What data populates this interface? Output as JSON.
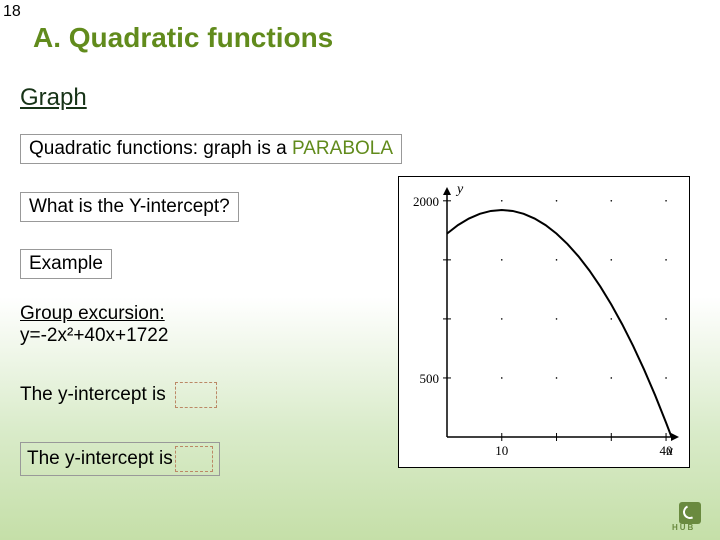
{
  "page_number": "18",
  "title": "A. Quadratic functions",
  "section_heading": "Graph",
  "definition_prefix": "Quadratic functions: graph is a ",
  "definition_highlight": "PARABOLA",
  "question": "What is the Y-intercept?",
  "example_label": "Example",
  "equation_heading": "Group excursion:",
  "equation_text": "y=-2x²+40x+1722",
  "yintercept_line1": "The y-intercept is ",
  "yintercept_line2": "The y-intercept is",
  "logo_text": "HUB",
  "chart": {
    "type": "line",
    "xlim": [
      0,
      42
    ],
    "ylim": [
      0,
      2100
    ],
    "xticks": [
      10,
      40
    ],
    "yticks": [
      500,
      2000
    ],
    "x_axis_label": "x",
    "y_axis_label": "y",
    "xtick_labels": [
      "10",
      "40"
    ],
    "ytick_labels": [
      "500",
      "2000"
    ],
    "curve_points": [
      [
        0,
        1722
      ],
      [
        2,
        1794
      ],
      [
        4,
        1850
      ],
      [
        6,
        1890
      ],
      [
        8,
        1914
      ],
      [
        10,
        1922
      ],
      [
        12,
        1914
      ],
      [
        14,
        1890
      ],
      [
        16,
        1850
      ],
      [
        18,
        1794
      ],
      [
        20,
        1722
      ],
      [
        22,
        1634
      ],
      [
        24,
        1530
      ],
      [
        26,
        1410
      ],
      [
        28,
        1274
      ],
      [
        30,
        1122
      ],
      [
        32,
        954
      ],
      [
        34,
        770
      ],
      [
        36,
        570
      ],
      [
        38,
        354
      ],
      [
        40,
        122
      ],
      [
        41,
        0
      ]
    ],
    "curve_color": "#000000",
    "curve_width": 2,
    "axis_color": "#000000",
    "tick_color": "#000000",
    "background_color": "#ffffff",
    "label_fontsize": 14,
    "tick_fontsize": 13,
    "x_minor_tick_step": 10,
    "y_minor_tick_step": 500,
    "dotted_grid_step_x": 10,
    "dotted_grid_step_y": 500
  }
}
